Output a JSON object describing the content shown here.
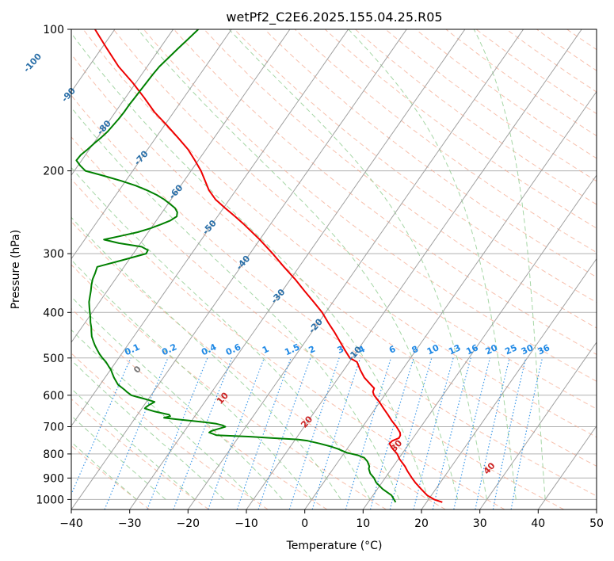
{
  "chart_data": {
    "type": "line",
    "title": "wetPf2_C2E6.2025.155.04.25.R05",
    "xlabel": "Temperature (°C)",
    "ylabel": "Pressure (hPa)",
    "xlim": [
      -40,
      50
    ],
    "ylim": [
      1050,
      100
    ],
    "y_scale": "log",
    "x_ticks": [
      "-40",
      "-30",
      "-20",
      "-10",
      "0",
      "10",
      "20",
      "30",
      "40",
      "50"
    ],
    "y_ticks": [
      "100",
      "200",
      "300",
      "400",
      "500",
      "600",
      "700",
      "800",
      "900",
      "1000"
    ],
    "grid": true,
    "colors": {
      "temperature": "#ee0000",
      "dewpoint": "#008000",
      "dry_adiabat": "#f4a58a",
      "moist_adiabat": "#8fcc8f",
      "mixing_ratio": "#1e88e5",
      "isotherm": "#a0a0a0",
      "isotherm_label": "#2a6fa8",
      "dry_label": "#cc2222",
      "zero_label": "#777777"
    },
    "series": [
      {
        "key": "temperature",
        "pressure": [
          1013,
          1000,
          980,
          950,
          920,
          900,
          870,
          850,
          820,
          800,
          790,
          780,
          770,
          760,
          750,
          745,
          740,
          730,
          720,
          700,
          680,
          660,
          640,
          620,
          600,
          590,
          580,
          570,
          550,
          530,
          510,
          500,
          480,
          460,
          440,
          420,
          400,
          380,
          360,
          340,
          320,
          300,
          280,
          260,
          250,
          240,
          230,
          220,
          210,
          200,
          190,
          180,
          170,
          160,
          150,
          140,
          130,
          120,
          110,
          100
        ],
        "values": [
          22.7,
          21,
          19.3,
          17.5,
          15.7,
          14.6,
          13,
          12,
          10.2,
          9.2,
          8.5,
          7.8,
          7.2,
          6.6,
          6.8,
          7.2,
          7.6,
          7.5,
          7.1,
          5.8,
          4.3,
          2.9,
          1.4,
          -0.1,
          -1.8,
          -2.4,
          -2.6,
          -3.6,
          -5.6,
          -7.2,
          -8.7,
          -10.4,
          -12.3,
          -14.2,
          -16.2,
          -18.4,
          -20.6,
          -23.3,
          -26.2,
          -29.2,
          -32.6,
          -36.1,
          -40,
          -44.5,
          -47,
          -49.7,
          -52.4,
          -54.6,
          -56.4,
          -58.3,
          -60.6,
          -63.1,
          -66.2,
          -69.6,
          -73.3,
          -76.7,
          -80.5,
          -84.9,
          -89,
          -93.4
        ]
      },
      {
        "key": "dewpoint",
        "pressure": [
          1013,
          1000,
          980,
          950,
          920,
          900,
          880,
          860,
          850,
          830,
          815,
          805,
          795,
          780,
          770,
          760,
          750,
          745,
          740,
          735,
          730,
          725,
          720,
          715,
          710,
          705,
          700,
          695,
          690,
          685,
          680,
          675,
          670,
          665,
          660,
          655,
          650,
          645,
          640,
          635,
          630,
          625,
          620,
          615,
          610,
          605,
          600,
          595,
          590,
          585,
          580,
          575,
          570,
          560,
          550,
          540,
          530,
          520,
          510,
          500,
          490,
          480,
          470,
          460,
          450,
          440,
          430,
          420,
          410,
          400,
          390,
          380,
          370,
          360,
          350,
          340,
          330,
          320,
          310,
          300,
          295,
          290,
          285,
          280,
          275,
          270,
          265,
          260,
          255,
          250,
          245,
          240,
          235,
          230,
          225,
          220,
          215,
          210,
          205,
          200,
          195,
          190,
          185,
          180,
          175,
          170,
          165,
          160,
          155,
          150,
          145,
          140,
          135,
          130,
          125,
          120,
          115,
          110,
          105,
          100
        ],
        "values": [
          14.7,
          14.1,
          13.2,
          10.9,
          9,
          8.1,
          6.9,
          6.1,
          5.9,
          5,
          4,
          2.6,
          0.4,
          -1.6,
          -3.3,
          -5.4,
          -7.7,
          -9.6,
          -14.3,
          -18,
          -24,
          -24.8,
          -25.6,
          -25.4,
          -24.8,
          -24.1,
          -23.5,
          -24.2,
          -25.4,
          -27.5,
          -30.1,
          -32.8,
          -35.1,
          -34.2,
          -34.6,
          -36,
          -37.4,
          -38.5,
          -39.5,
          -39.4,
          -39.2,
          -38.9,
          -38.6,
          -39.7,
          -40.9,
          -42.2,
          -43.4,
          -44,
          -44.6,
          -45.1,
          -45.7,
          -46.3,
          -46.9,
          -47.7,
          -48.5,
          -49.2,
          -49.9,
          -50.8,
          -51.7,
          -52.8,
          -53.8,
          -54.7,
          -55.6,
          -56.4,
          -57.2,
          -57.8,
          -58.4,
          -59.1,
          -59.7,
          -60.4,
          -61.1,
          -61.8,
          -62.3,
          -62.8,
          -63.4,
          -63.9,
          -64.2,
          -64.6,
          -61.2,
          -57.8,
          -57.9,
          -59.4,
          -63.7,
          -66.7,
          -64.2,
          -61.8,
          -60.1,
          -58.8,
          -57.6,
          -57,
          -57.4,
          -58.3,
          -59.7,
          -61.2,
          -63,
          -65.2,
          -67.7,
          -70.8,
          -74.3,
          -78.1,
          -79.6,
          -80.9,
          -80.8,
          -80.3,
          -79.9,
          -79.4,
          -79,
          -78.8,
          -78.6,
          -78.5,
          -78.5,
          -78.4,
          -78.3,
          -78.2,
          -78.1,
          -77.9,
          -77.4,
          -76.9,
          -76.3,
          -75.7
        ]
      }
    ],
    "isotherm_labels": [
      "-100",
      "-90",
      "-80",
      "-70",
      "-60",
      "-50",
      "-40",
      "-30",
      "-20",
      "-10"
    ],
    "mixing_ratio_labels": [
      "0.1",
      "0.2",
      "0.4",
      "0.6",
      "1",
      "1.5",
      "2",
      "3",
      "4",
      "6",
      "8",
      "10",
      "13",
      "16",
      "20",
      "25",
      "30",
      "36"
    ],
    "dry_adiabat_labels": [
      "0",
      "10",
      "20",
      "30",
      "40"
    ]
  }
}
